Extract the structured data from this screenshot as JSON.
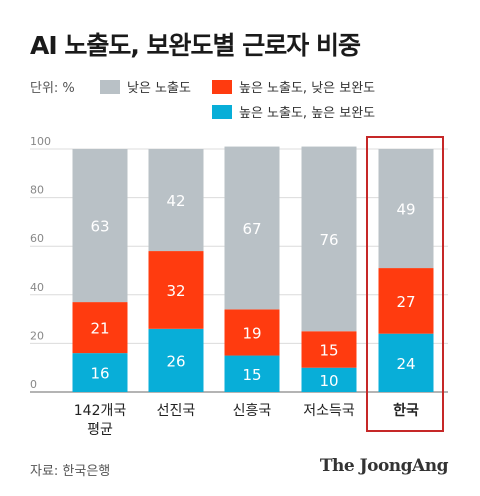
{
  "title": "AI 노출도, 보완도별 근로자 비중",
  "unit_label": "단위: %",
  "source": "자료: 한국은행",
  "brand": "The JoongAng",
  "colors": {
    "gray": "#b9c1c6",
    "red": "#ff3b0f",
    "blue": "#08aed8",
    "highlight": "#c62828"
  },
  "legend": [
    {
      "label": "낮은 노출도",
      "color": "#b9c1c6"
    },
    {
      "label": "높은 노출도, 낮은 보완도",
      "color": "#ff3b0f"
    },
    {
      "label": "높은 노출도, 높은 보완도",
      "color": "#08aed8"
    }
  ],
  "chart_data": {
    "type": "bar",
    "stacked": true,
    "categories": [
      "142개국\n평균",
      "선진국",
      "신흥국",
      "저소득국",
      "한국"
    ],
    "highlight_category": "한국",
    "ylim": [
      0,
      100
    ],
    "yticks": [
      0,
      20,
      40,
      60,
      80,
      100
    ],
    "grid": true,
    "series": [
      {
        "name": "높은 노출도, 높은 보완도",
        "color": "#08aed8",
        "values": [
          16,
          26,
          15,
          10,
          24
        ]
      },
      {
        "name": "높은 노출도, 낮은 보완도",
        "color": "#ff3b0f",
        "values": [
          21,
          32,
          19,
          15,
          27
        ]
      },
      {
        "name": "낮은 노출도",
        "color": "#b9c1c6",
        "values": [
          63,
          42,
          67,
          76,
          49
        ]
      }
    ]
  }
}
